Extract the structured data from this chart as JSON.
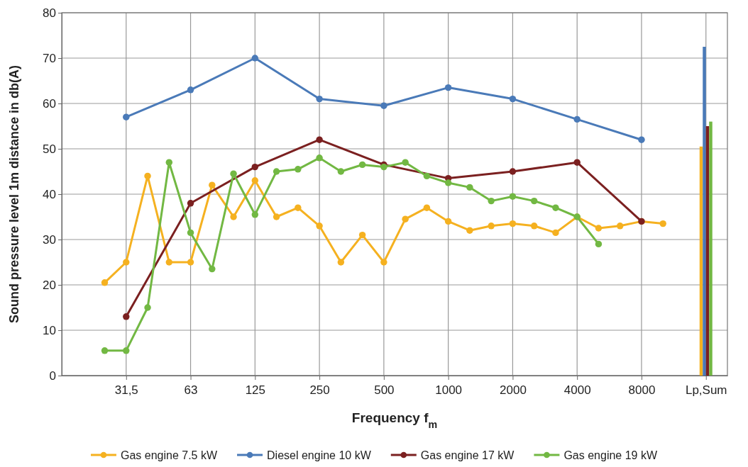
{
  "chart_data": {
    "type": "line",
    "xlabel": "Frequency f$_{m}$",
    "ylabel": "Sound pressure level 1m distance in db(A)",
    "categories": [
      null,
      null,
      "31,5",
      null,
      null,
      "63",
      null,
      null,
      "125",
      null,
      null,
      "250",
      null,
      null,
      "500",
      null,
      null,
      "1000",
      null,
      null,
      "2000",
      null,
      null,
      "4000",
      null,
      null,
      "8000",
      null,
      null,
      "Lp,Sum"
    ],
    "ylim": [
      0,
      80
    ],
    "yticks": [
      0,
      10,
      20,
      30,
      40,
      50,
      60,
      70,
      80
    ],
    "grid": true,
    "legend": "bottom",
    "marker": "circle",
    "line_style": "solid",
    "series": [
      {
        "name": "Gas engine 7.5 kW",
        "color": "#f5b120",
        "values": [
          null,
          20.5,
          25,
          44,
          25,
          25,
          42,
          35,
          43,
          35,
          37,
          33,
          25,
          31,
          25,
          34.5,
          37,
          34,
          32,
          33,
          33.5,
          33,
          31.5,
          35,
          32.5,
          33,
          34,
          33.5,
          null,
          null
        ]
      },
      {
        "name": "Diesel engine 10 kW",
        "color": "#4a7ab8",
        "values": [
          null,
          null,
          57,
          null,
          null,
          63,
          null,
          null,
          70,
          null,
          null,
          61,
          null,
          null,
          59.5,
          null,
          null,
          63.5,
          null,
          null,
          61,
          null,
          null,
          56.5,
          null,
          null,
          52,
          null,
          null,
          null
        ]
      },
      {
        "name": "Gas engine 17 kW",
        "color": "#7b2020",
        "values": [
          null,
          null,
          13,
          null,
          null,
          38,
          null,
          null,
          46,
          null,
          null,
          52,
          null,
          null,
          46.5,
          null,
          null,
          43.5,
          null,
          null,
          45,
          null,
          null,
          47,
          null,
          null,
          34,
          null,
          null,
          null
        ]
      },
      {
        "name": "Gas engine 19 kW",
        "color": "#72b843",
        "values": [
          null,
          5.5,
          5.5,
          15,
          47,
          31.5,
          23.5,
          44.5,
          35.5,
          45,
          45.5,
          48,
          45,
          46.5,
          46,
          47,
          44,
          42.5,
          41.5,
          38.5,
          39.5,
          38.5,
          37,
          35,
          29,
          null,
          null,
          null,
          null,
          null
        ]
      },
      {
        "type": "bar",
        "color": "#f5b120",
        "x": [
          "Lp,Sum"
        ],
        "values": [
          50.5
        ]
      },
      {
        "type": "bar",
        "color": "#4a7ab8",
        "x": [
          "Lp,Sum"
        ],
        "values": [
          72.5
        ]
      },
      {
        "type": "bar",
        "color": "#7b2020",
        "x": [
          "Lp,Sum"
        ],
        "values": [
          55
        ]
      },
      {
        "type": "bar",
        "color": "#72b843",
        "x": [
          "Lp,Sum"
        ],
        "values": [
          56
        ]
      }
    ]
  }
}
